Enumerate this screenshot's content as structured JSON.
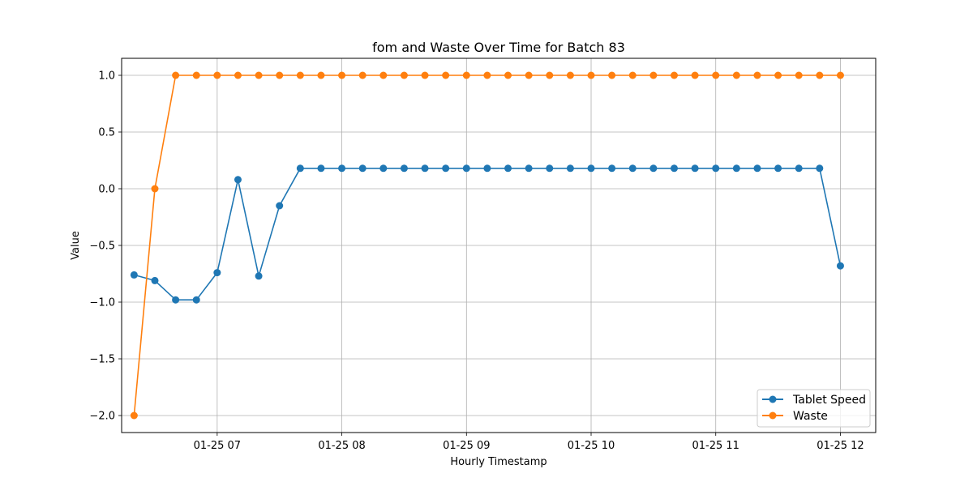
{
  "chart_data": {
    "type": "line",
    "title": "fom and Waste Over Time for Batch 83",
    "xlabel": "Hourly Timestamp",
    "ylabel": "Value",
    "x_unit": "time of day on 01-25",
    "x": [
      "06:20",
      "06:30",
      "06:40",
      "06:50",
      "07:00",
      "07:10",
      "07:20",
      "07:30",
      "07:40",
      "07:50",
      "08:00",
      "08:10",
      "08:20",
      "08:30",
      "08:40",
      "08:50",
      "09:00",
      "09:10",
      "09:20",
      "09:30",
      "09:40",
      "09:50",
      "10:00",
      "10:10",
      "10:20",
      "10:30",
      "10:40",
      "10:50",
      "11:00",
      "11:10",
      "11:20",
      "11:30",
      "11:40",
      "11:50",
      "12:00"
    ],
    "xticks": [
      {
        "at": "07:00",
        "label": "01-25 07"
      },
      {
        "at": "08:00",
        "label": "01-25 08"
      },
      {
        "at": "09:00",
        "label": "01-25 09"
      },
      {
        "at": "10:00",
        "label": "01-25 10"
      },
      {
        "at": "11:00",
        "label": "01-25 11"
      },
      {
        "at": "12:00",
        "label": "01-25 12"
      }
    ],
    "xlim": [
      "06:14",
      "12:17"
    ],
    "yticks": [
      {
        "value": -2.0,
        "label": "−2.0"
      },
      {
        "value": -1.5,
        "label": "−1.5"
      },
      {
        "value": -1.0,
        "label": "−1.0"
      },
      {
        "value": -0.5,
        "label": "−0.5"
      },
      {
        "value": 0.0,
        "label": "0.0"
      },
      {
        "value": 0.5,
        "label": "0.5"
      },
      {
        "value": 1.0,
        "label": "1.0"
      }
    ],
    "ylim": [
      -2.15,
      1.15
    ],
    "grid": true,
    "legend_position": "bottom-right",
    "series": [
      {
        "name": "Tablet Speed",
        "color": "#1f77b4",
        "marker": "circle",
        "values": [
          -0.76,
          -0.81,
          -0.98,
          -0.98,
          -0.74,
          0.08,
          -0.77,
          -0.15,
          0.18,
          0.18,
          0.18,
          0.18,
          0.18,
          0.18,
          0.18,
          0.18,
          0.18,
          0.18,
          0.18,
          0.18,
          0.18,
          0.18,
          0.18,
          0.18,
          0.18,
          0.18,
          0.18,
          0.18,
          0.18,
          0.18,
          0.18,
          0.18,
          0.18,
          0.18,
          -0.68
        ]
      },
      {
        "name": "Waste",
        "color": "#ff7f0e",
        "marker": "circle",
        "values": [
          -2.0,
          0.0,
          1.0,
          1.0,
          1.0,
          1.0,
          1.0,
          1.0,
          1.0,
          1.0,
          1.0,
          1.0,
          1.0,
          1.0,
          1.0,
          1.0,
          1.0,
          1.0,
          1.0,
          1.0,
          1.0,
          1.0,
          1.0,
          1.0,
          1.0,
          1.0,
          1.0,
          1.0,
          1.0,
          1.0,
          1.0,
          1.0,
          1.0,
          1.0,
          1.0
        ]
      }
    ]
  }
}
